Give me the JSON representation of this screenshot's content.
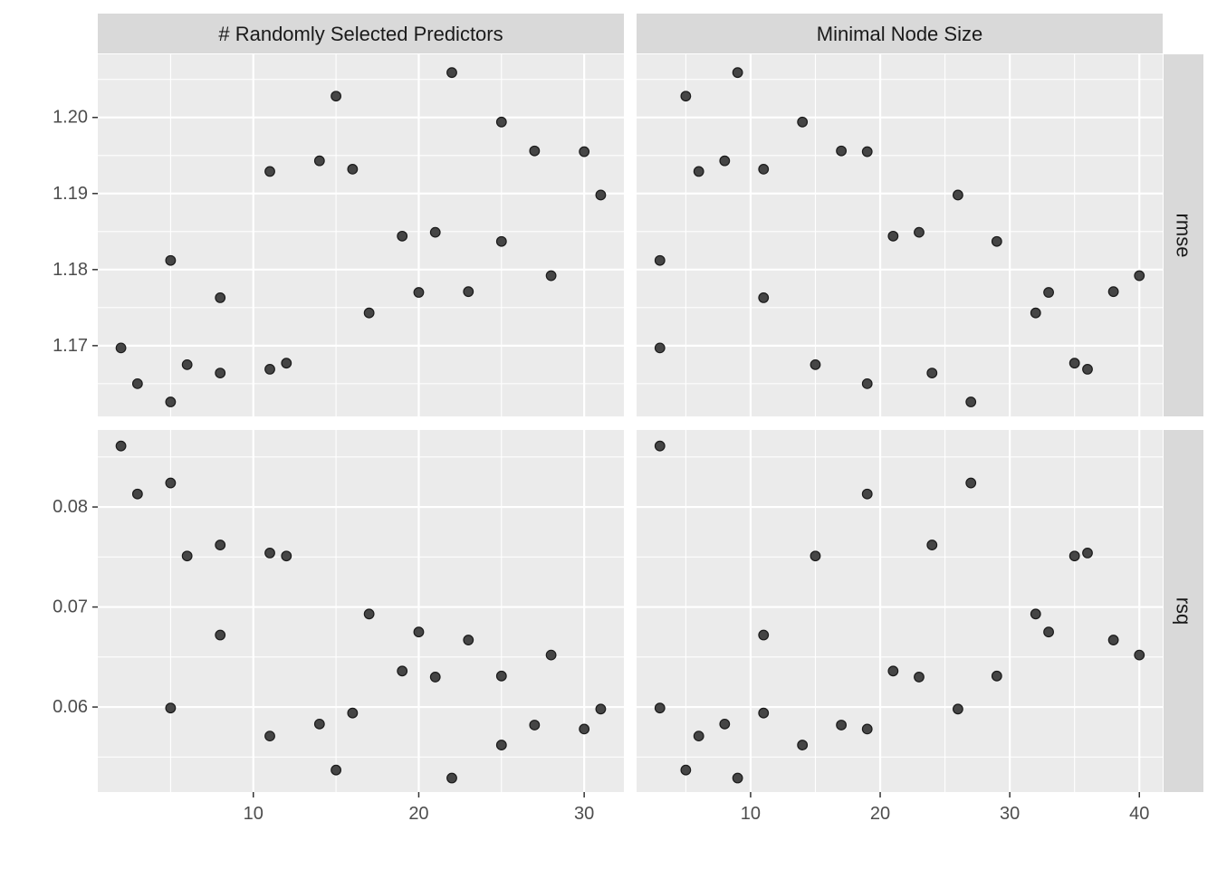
{
  "chart_data": {
    "type": "scatter",
    "layout": "facet_grid",
    "columns": [
      "# Randomly Selected Predictors",
      "Minimal Node Size"
    ],
    "rows": [
      "rmse",
      "rsq"
    ],
    "x_ticks": {
      "# Randomly Selected Predictors": [
        10,
        20,
        30
      ],
      "Minimal Node Size": [
        10,
        20,
        30,
        40
      ]
    },
    "x_range": {
      "# Randomly Selected Predictors": [
        0.6,
        32.4
      ],
      "Minimal Node Size": [
        1.2,
        41.8
      ]
    },
    "y_ticks": {
      "rmse": [
        1.17,
        1.18,
        1.19,
        1.2
      ],
      "rsq": [
        0.06,
        0.07,
        0.08
      ]
    },
    "y_tick_labels": {
      "rmse": [
        "1.17",
        "1.18",
        "1.19",
        "1.20"
      ],
      "rsq": [
        "0.06",
        "0.07",
        "0.08"
      ]
    },
    "y_range": {
      "rmse": [
        1.1607,
        1.2083
      ],
      "rsq": [
        0.0515,
        0.0877
      ]
    },
    "grid": true,
    "point_color": "#333333",
    "panel_bg": "#EBEBEB",
    "strip_bg": "#D9D9D9",
    "points": [
      {
        "mtry": 2,
        "min_n": 3,
        "rmse": 1.1697,
        "rsq": 0.0861
      },
      {
        "mtry": 3,
        "min_n": 19,
        "rmse": 1.165,
        "rsq": 0.0813
      },
      {
        "mtry": 5,
        "min_n": 27,
        "rmse": 1.1626,
        "rsq": 0.0824
      },
      {
        "mtry": 5,
        "min_n": 3,
        "rmse": 1.1812,
        "rsq": 0.0599
      },
      {
        "mtry": 6,
        "min_n": 15,
        "rmse": 1.1675,
        "rsq": 0.0751
      },
      {
        "mtry": 8,
        "min_n": 11,
        "rmse": 1.1763,
        "rsq": 0.0672
      },
      {
        "mtry": 8,
        "min_n": 24,
        "rmse": 1.1664,
        "rsq": 0.0762
      },
      {
        "mtry": 11,
        "min_n": 6,
        "rmse": 1.1929,
        "rsq": 0.0571
      },
      {
        "mtry": 11,
        "min_n": 36,
        "rmse": 1.1669,
        "rsq": 0.0754
      },
      {
        "mtry": 12,
        "min_n": 35,
        "rmse": 1.1677,
        "rsq": 0.0751
      },
      {
        "mtry": 14,
        "min_n": 8,
        "rmse": 1.1943,
        "rsq": 0.0583
      },
      {
        "mtry": 15,
        "min_n": 5,
        "rmse": 1.2028,
        "rsq": 0.0537
      },
      {
        "mtry": 16,
        "min_n": 11,
        "rmse": 1.1932,
        "rsq": 0.0594
      },
      {
        "mtry": 17,
        "min_n": 32,
        "rmse": 1.1743,
        "rsq": 0.0693
      },
      {
        "mtry": 19,
        "min_n": 21,
        "rmse": 1.1844,
        "rsq": 0.0636
      },
      {
        "mtry": 20,
        "min_n": 33,
        "rmse": 1.177,
        "rsq": 0.0675
      },
      {
        "mtry": 21,
        "min_n": 23,
        "rmse": 1.1849,
        "rsq": 0.063
      },
      {
        "mtry": 22,
        "min_n": 9,
        "rmse": 1.2059,
        "rsq": 0.0529
      },
      {
        "mtry": 23,
        "min_n": 38,
        "rmse": 1.1771,
        "rsq": 0.0667
      },
      {
        "mtry": 25,
        "min_n": 14,
        "rmse": 1.1994,
        "rsq": 0.0562
      },
      {
        "mtry": 25,
        "min_n": 29,
        "rmse": 1.1837,
        "rsq": 0.0631
      },
      {
        "mtry": 27,
        "min_n": 17,
        "rmse": 1.1956,
        "rsq": 0.0582
      },
      {
        "mtry": 28,
        "min_n": 40,
        "rmse": 1.1792,
        "rsq": 0.0652
      },
      {
        "mtry": 30,
        "min_n": 19,
        "rmse": 1.1955,
        "rsq": 0.0578
      },
      {
        "mtry": 31,
        "min_n": 26,
        "rmse": 1.1898,
        "rsq": 0.0598
      }
    ]
  }
}
